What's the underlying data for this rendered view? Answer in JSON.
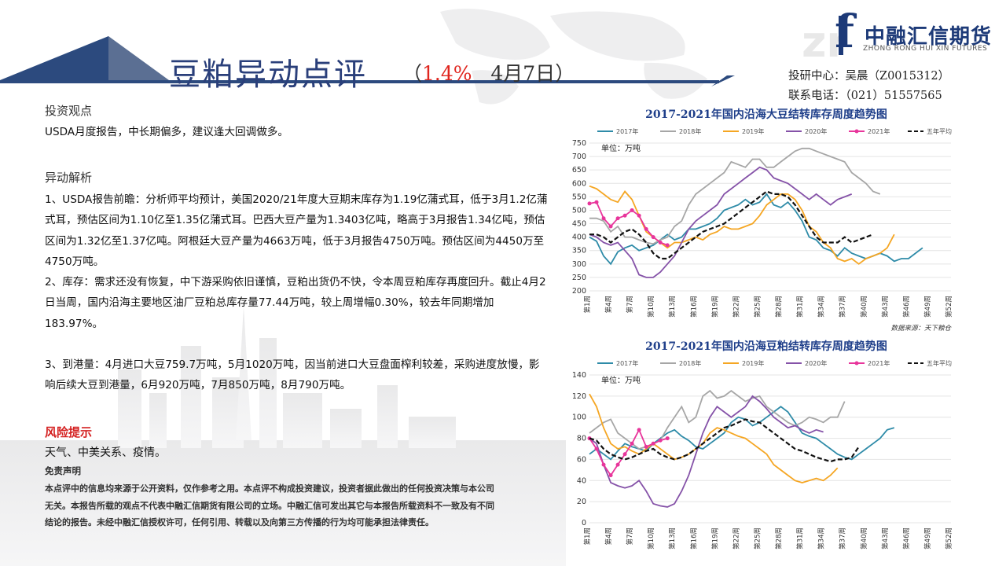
{
  "header": {
    "title": "豆粕异动点评",
    "paren_open": "（",
    "change_pct": "1.4%",
    "date": "4月7日",
    "paren_close": "）",
    "logo_cn": "中融汇信期货",
    "logo_en": "ZHONG RONG HUI XIN FUTURES",
    "logo_mark": "f",
    "contact_analyst": "投研中心：吴晨（Z0015312）",
    "contact_phone": "联系电话：（021）51557565"
  },
  "sections": {
    "view_title": "投资观点",
    "view_text": "USDA月度报告，中长期偏多，建议逢大回调做多。",
    "analysis_title": "异动解析",
    "p1": "1、USDA报告前瞻：分析师平均预计，美国2020/21年度大豆期末库存为1.19亿蒲式耳，低于3月1.2亿蒲式耳，预估区间为1.10亿至1.35亿蒲式耳。巴西大豆产量为1.3403亿吨，略高于3月报告1.34亿吨，预估区间为1.32亿至1.37亿吨。阿根廷大豆产量为4663万吨，低于3月报告4750万吨。预估区间为4450万至4750万吨。",
    "p2": "2、库存：需求还没有恢复，中下游采购依旧谨慎，豆粕出货仍不快，令本周豆粕库存再度回升。截止4月2日当周，国内沿海主要地区油厂豆粕总库存量77.44万吨，较上周增幅0.30%，较去年同期增加183.97%。",
    "p3": "3、到港量：4月进口大豆759.7万吨，5月1020万吨，因当前进口大豆盘面榨利较差，采购进度放慢，影响后续大豆到港量，6月920万吨，7月850万吨，8月790万吨。",
    "risk_title": "风险提示",
    "risk_text": "天气、中美关系、疫情。",
    "disclaimer_title": "免责声明",
    "disclaimer_text": "本点评中的信息均来源于公开资料，仅作参考之用。本点评不构成投资建议，投资者据此做出的任何投资决策与本公司无关。本报告所载的观点不代表中融汇信期货有限公司的立场。中融汇信可发出其它与本报告所载资料不一致及有不同结论的报告。未经中融汇信授权许可，任何引用、转载以及向第三方传播的行为均可能承担法律责任。"
  },
  "colors": {
    "2017": "#2e8ba8",
    "2018": "#a6a6a6",
    "2019": "#f5a623",
    "2020": "#8552a8",
    "2021": "#e8359b",
    "avg": "#111111"
  },
  "chart_data": [
    {
      "type": "line",
      "title": "2017-2021年国内沿海大豆结转库存周度趋势图",
      "unit_label": "单位：万吨",
      "source": "数据来源：天下粮仓",
      "ylim": [
        200,
        750
      ],
      "yticks": [
        200,
        250,
        300,
        350,
        400,
        450,
        500,
        550,
        600,
        650,
        700,
        750
      ],
      "xticks": [
        "第1周",
        "第4周",
        "第7周",
        "第10周",
        "第13周",
        "第16周",
        "第19周",
        "第22周",
        "第25周",
        "第28周",
        "第31周",
        "第34周",
        "第37周",
        "第40周",
        "第43周",
        "第46周",
        "第49周",
        "第52周"
      ],
      "legend": [
        "2017年",
        "2018年",
        "2019年",
        "2020年",
        "2021年",
        "五年平均"
      ],
      "series": [
        {
          "name": "2017年",
          "key": "2017",
          "values": [
            400,
            385,
            330,
            300,
            345,
            360,
            370,
            350,
            360,
            370,
            390,
            410,
            390,
            400,
            430,
            430,
            440,
            450,
            470,
            500,
            510,
            520,
            540,
            520,
            530,
            560,
            520,
            510,
            530,
            500,
            460,
            400,
            390,
            360,
            350,
            330,
            360,
            340,
            330,
            320,
            330,
            340,
            330,
            310,
            320,
            320,
            340,
            360
          ]
        },
        {
          "name": "2018年",
          "key": "2018",
          "values": [
            470,
            470,
            460,
            420,
            440,
            400,
            400,
            390,
            380,
            375,
            390,
            400,
            440,
            460,
            520,
            560,
            580,
            600,
            620,
            640,
            680,
            670,
            660,
            690,
            690,
            660,
            660,
            680,
            700,
            720,
            730,
            730,
            720,
            710,
            700,
            690,
            680,
            640,
            620,
            600,
            570,
            560
          ]
        },
        {
          "name": "2019年",
          "key": "2019",
          "values": [
            590,
            580,
            560,
            540,
            530,
            570,
            540,
            480,
            420,
            400,
            380,
            360,
            380,
            380,
            390,
            400,
            390,
            410,
            420,
            440,
            430,
            430,
            440,
            450,
            480,
            520,
            540,
            560,
            560,
            540,
            500,
            440,
            420,
            380,
            360,
            320,
            310,
            320,
            300,
            320,
            330,
            340,
            360,
            410
          ]
        },
        {
          "name": "2020年",
          "key": "2020",
          "values": [
            410,
            400,
            380,
            370,
            380,
            350,
            320,
            260,
            250,
            250,
            270,
            300,
            330,
            380,
            430,
            460,
            480,
            500,
            520,
            560,
            580,
            600,
            620,
            640,
            660,
            650,
            620,
            610,
            600,
            580,
            560,
            540,
            560,
            540,
            520,
            540,
            550,
            560
          ]
        },
        {
          "name": "2021年",
          "key": "2021",
          "values": [
            525,
            530,
            470,
            440,
            470,
            480,
            500,
            480,
            430,
            400,
            380,
            370
          ]
        },
        {
          "name": "五年平均",
          "key": "avg",
          "values": [
            410,
            410,
            400,
            380,
            400,
            420,
            430,
            410,
            380,
            340,
            320,
            320,
            340,
            360,
            380,
            400,
            420,
            430,
            440,
            450,
            470,
            490,
            510,
            530,
            550,
            570,
            560,
            560,
            550,
            520,
            480,
            440,
            400,
            380,
            380,
            380,
            400,
            380,
            390,
            400,
            410
          ]
        }
      ]
    },
    {
      "type": "line",
      "title": "2017-2021年国内沿海豆粕结转库存周度趋势图",
      "unit_label": "单位：万吨",
      "ylim": [
        0,
        140
      ],
      "yticks": [
        0,
        20,
        40,
        60,
        80,
        100,
        120,
        140
      ],
      "xticks": [
        "第1周",
        "第4周",
        "第7周",
        "第10周",
        "第13周",
        "第16周",
        "第19周",
        "第22周",
        "第25周",
        "第28周",
        "第31周",
        "第34周",
        "第37周",
        "第40周",
        "第43周",
        "第46周",
        "第49周",
        "第52周"
      ],
      "legend": [
        "2017年",
        "2018年",
        "2019年",
        "2020年",
        "2021年",
        "五年平均"
      ],
      "series": [
        {
          "name": "2017年",
          "key": "2017",
          "values": [
            65,
            70,
            65,
            60,
            68,
            75,
            72,
            70,
            68,
            75,
            80,
            85,
            88,
            82,
            78,
            72,
            70,
            75,
            80,
            85,
            95,
            100,
            98,
            92,
            95,
            100,
            105,
            110,
            105,
            95,
            85,
            82,
            80,
            75,
            70,
            65,
            62,
            60,
            65,
            70,
            75,
            80,
            88,
            90
          ]
        },
        {
          "name": "2018年",
          "key": "2018",
          "values": [
            85,
            90,
            95,
            98,
            85,
            80,
            75,
            70,
            72,
            75,
            78,
            90,
            100,
            110,
            95,
            100,
            120,
            125,
            118,
            120,
            125,
            120,
            115,
            118,
            120,
            110,
            105,
            100,
            95,
            92,
            95,
            100,
            98,
            95,
            100,
            100,
            115
          ]
        },
        {
          "name": "2019年",
          "key": "2019",
          "values": [
            122,
            110,
            90,
            75,
            70,
            72,
            68,
            65,
            70,
            75,
            70,
            65,
            60,
            62,
            65,
            70,
            75,
            85,
            90,
            88,
            85,
            82,
            80,
            75,
            70,
            65,
            55,
            50,
            45,
            40,
            38,
            40,
            42,
            40,
            45,
            52
          ]
        },
        {
          "name": "2020年",
          "key": "2020",
          "values": [
            80,
            75,
            55,
            38,
            35,
            33,
            35,
            40,
            30,
            18,
            16,
            15,
            18,
            30,
            45,
            65,
            85,
            100,
            110,
            105,
            100,
            105,
            110,
            120,
            115,
            108,
            100,
            95,
            90,
            92,
            88,
            85,
            88,
            86
          ]
        },
        {
          "name": "2021年",
          "key": "2021",
          "values": [
            80,
            70,
            55,
            45,
            55,
            65,
            75,
            88,
            72,
            75,
            78,
            80
          ]
        },
        {
          "name": "五年平均",
          "key": "avg",
          "values": [
            80,
            78,
            70,
            65,
            62,
            60,
            62,
            65,
            68,
            70,
            65,
            62,
            60,
            62,
            65,
            70,
            75,
            80,
            85,
            90,
            92,
            95,
            98,
            96,
            95,
            90,
            85,
            80,
            75,
            70,
            68,
            65,
            62,
            60,
            58,
            60,
            60,
            62,
            72
          ]
        }
      ]
    }
  ]
}
